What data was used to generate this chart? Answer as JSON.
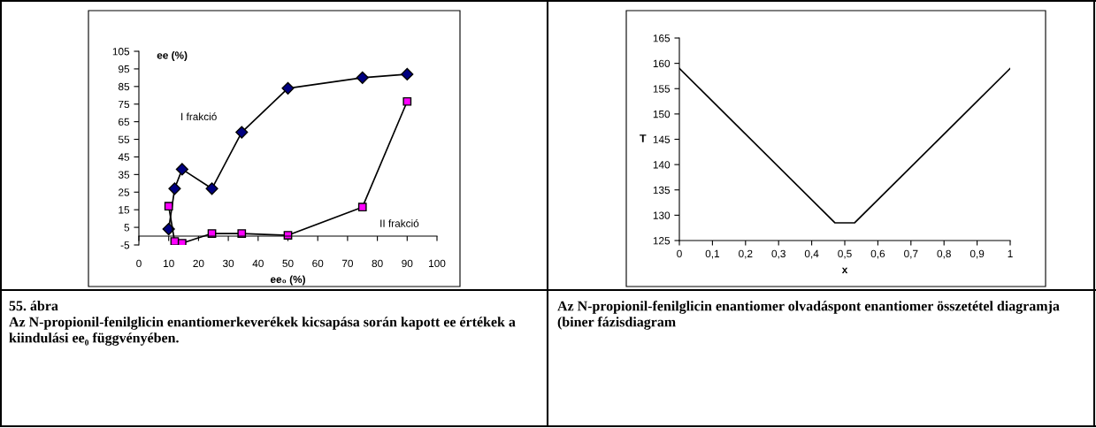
{
  "chart_data": [
    {
      "type": "line",
      "xlabel": "ee₀ (%)",
      "ylabel": "ee (%)",
      "xlim": [
        0,
        100
      ],
      "xticks": [
        0,
        10,
        20,
        30,
        40,
        50,
        60,
        70,
        80,
        90,
        100
      ],
      "ylim": [
        -5,
        105
      ],
      "yticks": [
        -5,
        5,
        15,
        25,
        35,
        45,
        55,
        65,
        75,
        85,
        95,
        105
      ],
      "grid": false,
      "legend": false,
      "series": [
        {
          "name": "I frakció",
          "color": "#000080",
          "marker": "diamond",
          "x": [
            10,
            12,
            14.5,
            24.5,
            34.5,
            50,
            75,
            90
          ],
          "values": [
            4,
            27,
            38,
            27,
            59,
            84,
            90,
            92
          ]
        },
        {
          "name": "II frakció",
          "color": "#ff00ff",
          "marker": "square",
          "x": [
            10,
            12,
            14.5,
            24.5,
            34.5,
            50,
            75,
            90
          ],
          "values": [
            17,
            -3,
            -4,
            1.5,
            1.5,
            0.5,
            16.5,
            76.5
          ]
        }
      ],
      "annotations": [
        "55. ábra",
        "Az N-propionil-fenilglicin enantiomerkeverékek kicsapása során kapott ee értékek a kiindulási ee₀ függvényében."
      ]
    },
    {
      "type": "line",
      "xlabel": "x",
      "ylabel": "T",
      "xlim": [
        0,
        1
      ],
      "xticks": [
        0,
        {
          "value": 0.1,
          "label": "0,1"
        },
        {
          "value": 0.2,
          "label": "0,2"
        },
        {
          "value": 0.3,
          "label": "0,3"
        },
        {
          "value": 0.4,
          "label": "0,4"
        },
        {
          "value": 0.5,
          "label": "0,5"
        },
        {
          "value": 0.6,
          "label": "0,6"
        },
        {
          "value": 0.7,
          "label": "0,7"
        },
        {
          "value": 0.8,
          "label": "0,8"
        },
        {
          "value": 0.9,
          "label": "0,9"
        },
        1
      ],
      "ylim": [
        125,
        165
      ],
      "yticks": [
        125,
        130,
        135,
        140,
        145,
        150,
        155,
        160,
        165
      ],
      "grid": false,
      "legend": false,
      "marker": "none",
      "series": [
        {
          "color": "#000000",
          "x": [
            0,
            0.47,
            0.53,
            1
          ],
          "values": [
            159,
            128.5,
            128.5,
            159
          ]
        }
      ],
      "annotations": [
        "Az N-propionil-fenilglicin enantiomer olvadáspont enantiomer összetétel diagramja (biner fázisdiagram"
      ]
    }
  ]
}
